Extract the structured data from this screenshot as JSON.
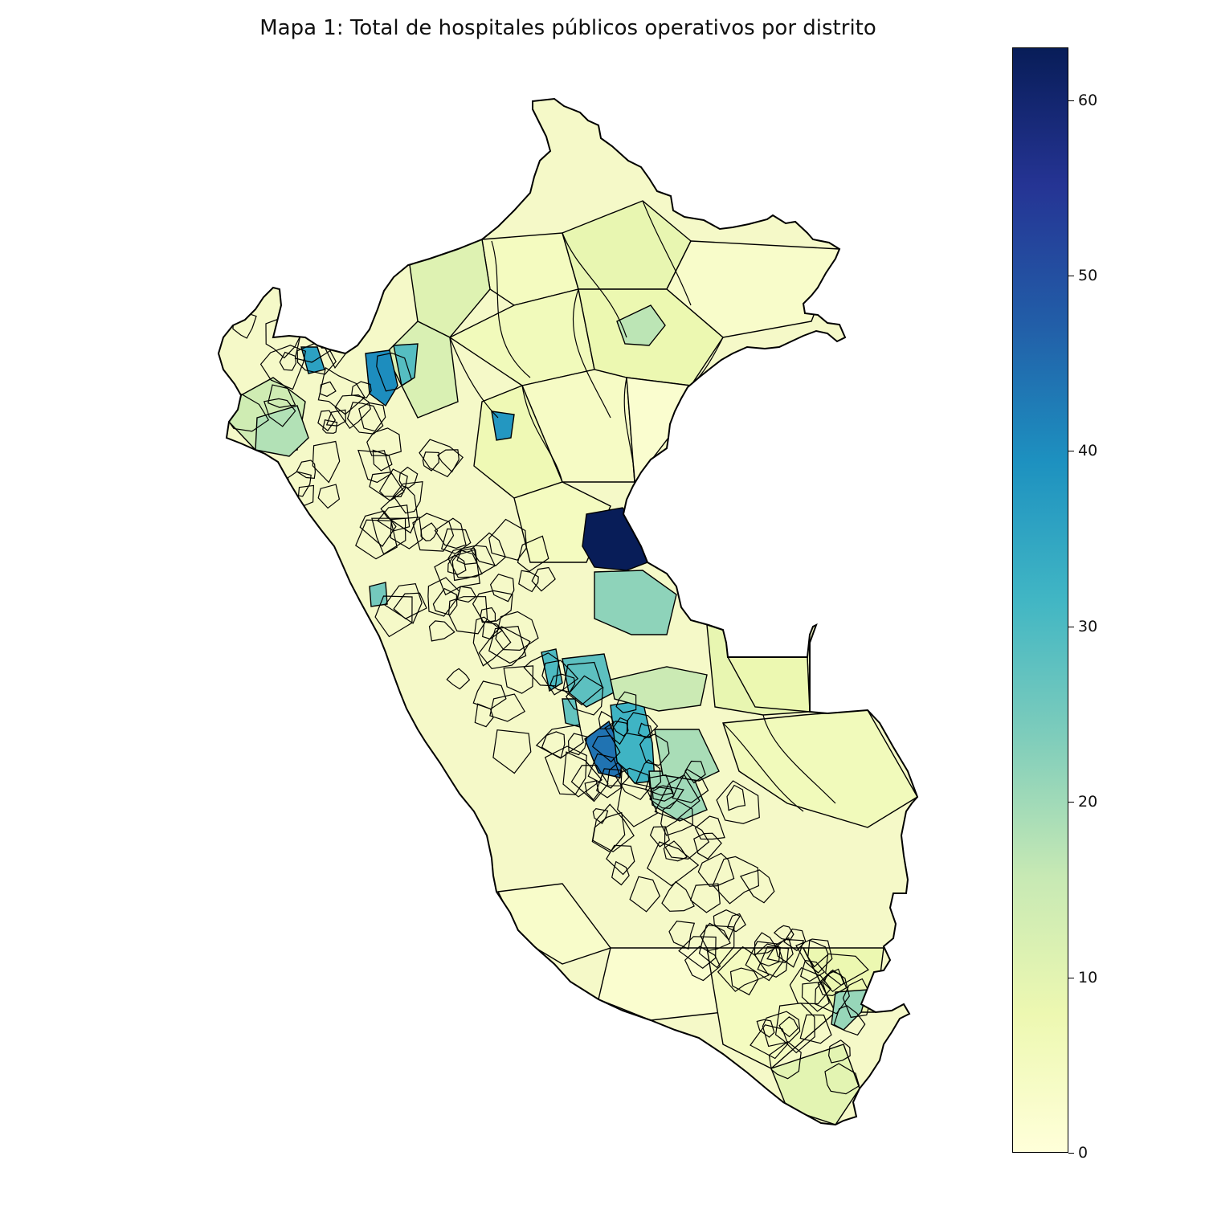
{
  "title": "Mapa 1: Total de hospitales públicos operativos por distrito",
  "colorbar": {
    "min": 0,
    "max": 63,
    "ticks": [
      0,
      10,
      20,
      30,
      40,
      50,
      60
    ],
    "colormap": "YlGnBu",
    "stops": [
      "#ffffd9",
      "#edf8b1",
      "#c7e9b4",
      "#7fcdbb",
      "#41b6c4",
      "#1d91c0",
      "#225ea8",
      "#253494",
      "#081d58"
    ]
  },
  "map": {
    "country": "Perú",
    "border_color": "#000000",
    "highlighted_districts": [
      {
        "value": 63
      },
      {
        "value": 44
      },
      {
        "value": 40
      },
      {
        "value": 38
      },
      {
        "value": 36
      },
      {
        "value": 32
      },
      {
        "value": 30
      },
      {
        "value": 29
      },
      {
        "value": 28
      },
      {
        "value": 27
      },
      {
        "value": 25
      },
      {
        "value": 22
      },
      {
        "value": 21
      },
      {
        "value": 20
      },
      {
        "value": 19
      },
      {
        "value": 18
      },
      {
        "value": 17
      },
      {
        "value": 15
      }
    ]
  }
}
